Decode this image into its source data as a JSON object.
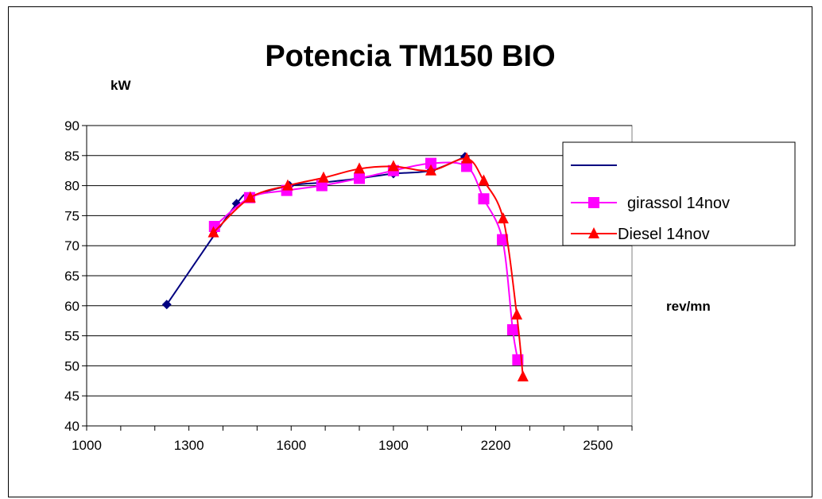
{
  "chart_data": {
    "type": "line",
    "title": "Potencia TM150 BIO",
    "ylabel": "kW",
    "xlabel": "rev/mn",
    "xlim": [
      1000,
      2600
    ],
    "ylim": [
      40,
      90
    ],
    "x_ticks": [
      1000,
      1300,
      1600,
      1900,
      2200,
      2500
    ],
    "y_ticks": [
      40,
      45,
      50,
      55,
      60,
      65,
      70,
      75,
      80,
      85,
      90
    ],
    "grid": "horizontal",
    "legend_position": "right",
    "series": [
      {
        "name": "",
        "color": "#000080",
        "marker": "diamond",
        "x": [
          1235,
          1440,
          1480,
          1595,
          1690,
          1800,
          1900,
          2010,
          2110
        ],
        "y": [
          60.2,
          77,
          78.2,
          80,
          80.5,
          81.2,
          82,
          82.5,
          84.8
        ]
      },
      {
        "name": "girassol 14nov",
        "color": "#ff00ff",
        "marker": "square",
        "x": [
          1375,
          1478,
          1587,
          1690,
          1800,
          1900,
          2010,
          2115,
          2165,
          2220,
          2250,
          2265
        ],
        "y": [
          73.2,
          78,
          79.2,
          80,
          81.2,
          82.5,
          83.7,
          83.2,
          77.8,
          71,
          56,
          51
        ]
      },
      {
        "name": "Diesel 14nov",
        "color": "#ff0000",
        "marker": "triangle",
        "x": [
          1372,
          1480,
          1590,
          1695,
          1800,
          1900,
          2010,
          2115,
          2165,
          2222,
          2262,
          2280
        ],
        "y": [
          72.2,
          78,
          80,
          81.3,
          82.8,
          83.2,
          82.5,
          84.5,
          80.8,
          74.5,
          58.5,
          48.2
        ]
      }
    ]
  }
}
